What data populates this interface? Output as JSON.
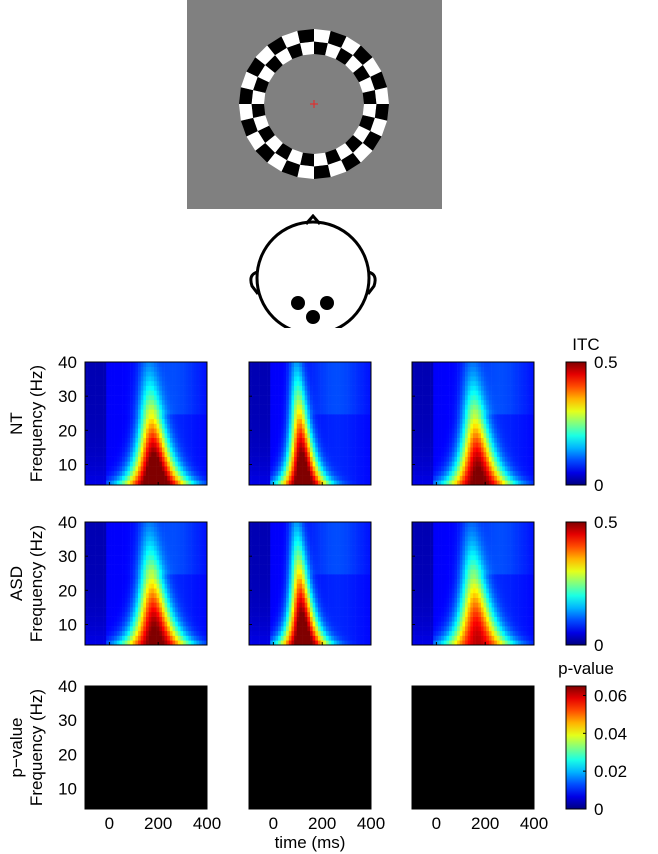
{
  "colors": {
    "stim_bg": "#808080",
    "fixation": "#e03030",
    "heatmap_colormap": "jet",
    "pvalue_fill": "#000000",
    "outline": "#000000"
  },
  "stimulus": {
    "description_icon": "checkerboard-annulus",
    "rings": 1
  },
  "head": {
    "electrodes": 3
  },
  "chart_data": [
    {
      "type": "heatmap",
      "row": "NT",
      "ylabel": "Frequency (Hz)",
      "colorbar_label": "ITC",
      "clim": [
        0,
        0.5
      ],
      "colorbar_ticks": [
        "0.5",
        "0"
      ],
      "ylim": [
        4,
        40
      ],
      "yticks": [
        "40",
        "30",
        "20",
        "10"
      ],
      "xlim": [
        -100,
        400
      ],
      "panels": [
        {
          "peak_time_ms": 175,
          "peak_itc": 0.5,
          "width": 1.0
        },
        {
          "peak_time_ms": 110,
          "peak_itc": 0.5,
          "width": 0.75
        },
        {
          "peak_time_ms": 160,
          "peak_itc": 0.45,
          "width": 1.0
        }
      ]
    },
    {
      "type": "heatmap",
      "row": "ASD",
      "ylabel": "Frequency (Hz)",
      "colorbar_label": "",
      "clim": [
        0,
        0.5
      ],
      "colorbar_ticks": [
        "0.5",
        "0"
      ],
      "ylim": [
        4,
        40
      ],
      "yticks": [
        "40",
        "30",
        "20",
        "10"
      ],
      "xlim": [
        -100,
        400
      ],
      "panels": [
        {
          "peak_time_ms": 175,
          "peak_itc": 0.45,
          "width": 1.0
        },
        {
          "peak_time_ms": 110,
          "peak_itc": 0.5,
          "width": 0.75
        },
        {
          "peak_time_ms": 155,
          "peak_itc": 0.4,
          "width": 1.0
        }
      ]
    },
    {
      "type": "heatmap",
      "row": "p−value",
      "ylabel": "Frequency (Hz)",
      "colorbar_label": "p-value",
      "clim": [
        0,
        0.065
      ],
      "colorbar_ticks": [
        "0.06",
        "0.04",
        "0.02",
        "0"
      ],
      "ylim": [
        4,
        40
      ],
      "yticks": [
        "40",
        "30",
        "20",
        "10"
      ],
      "xlim": [
        -100,
        400
      ],
      "xticks": [
        "0",
        "200",
        "400"
      ],
      "xlabel": "time (ms)",
      "panels": [
        {
          "value": 0
        },
        {
          "value": 0
        },
        {
          "value": 0
        }
      ]
    }
  ]
}
